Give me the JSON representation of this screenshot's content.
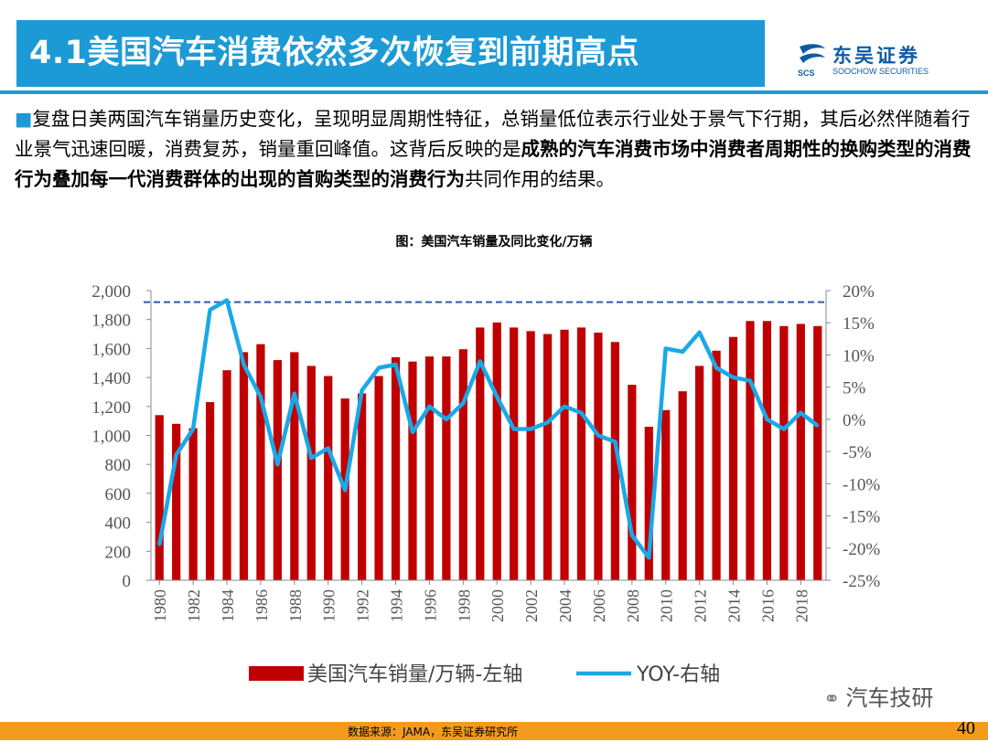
{
  "slide": {
    "title": "4.1美国汽车消费依然多次恢复到前期高点",
    "logo_cn": "东吴证券",
    "logo_en": "SOOCHOW SECURITIES",
    "logo_mark": "SCS",
    "intro": {
      "bullet": "■",
      "part1": "复盘日美两国汽车销量历史变化，呈现明显周期性特征，总销量低位表示行业处于景气下行期，其后必然伴随着行业景气迅速回暖，消费复苏，销量重回峰值。这背后反映的是",
      "bold": "成熟的汽车消费市场中消费者周期性的换购类型的消费行为叠加每一代消费群体的出现的首购类型的消费行为",
      "part2": "共同作用的结果。"
    },
    "chart_caption": "图：美国汽车销量及同比变化/万辆",
    "source": "数据来源：JAMA，东吴证券研究所",
    "page_number": "40",
    "watermark": "汽车技研",
    "colors": {
      "title_bar": "#1c9ad6",
      "bar": "#c00000",
      "yoy_line": "#1aa8e8",
      "ref_line": "#2e5ba8",
      "source_bar": "#f29b1d"
    }
  },
  "chart_data": {
    "type": "bar",
    "x": [
      1980,
      1981,
      1982,
      1983,
      1984,
      1985,
      1986,
      1987,
      1988,
      1989,
      1990,
      1991,
      1992,
      1993,
      1994,
      1995,
      1996,
      1997,
      1998,
      1999,
      2000,
      2001,
      2002,
      2003,
      2004,
      2005,
      2006,
      2007,
      2008,
      2009,
      2010,
      2011,
      2012,
      2013,
      2014,
      2015,
      2016,
      2017,
      2018,
      2019
    ],
    "x_tick_labels": [
      "1980",
      "1982",
      "1984",
      "1986",
      "1988",
      "1990",
      "1992",
      "1994",
      "1996",
      "1998",
      "2000",
      "2002",
      "2004",
      "2006",
      "2008",
      "2010",
      "2012",
      "2014",
      "2016",
      "2018"
    ],
    "series": [
      {
        "name": "美国汽车销量/万辆-左轴",
        "type": "bar",
        "axis": "left",
        "values": [
          1140,
          1080,
          1050,
          1230,
          1450,
          1575,
          1630,
          1520,
          1575,
          1480,
          1410,
          1255,
          1290,
          1410,
          1540,
          1510,
          1545,
          1545,
          1595,
          1745,
          1780,
          1745,
          1720,
          1700,
          1730,
          1745,
          1710,
          1645,
          1350,
          1060,
          1175,
          1305,
          1480,
          1585,
          1680,
          1790,
          1790,
          1755,
          1770,
          1755
        ]
      },
      {
        "name": "YOY-右轴",
        "type": "line",
        "axis": "right",
        "values": [
          -19.5,
          -5.5,
          -1.5,
          17,
          18.5,
          8.5,
          3.5,
          -7,
          4,
          -6,
          -4.5,
          -11,
          4.5,
          8,
          8.5,
          -2,
          2,
          0,
          2.5,
          9,
          3.5,
          -1.5,
          -1.5,
          -0.5,
          2,
          1,
          -2.5,
          -3.5,
          -18,
          -21.5,
          11,
          10.5,
          13.5,
          8,
          6.5,
          6,
          0,
          -1.5,
          1,
          -1
        ]
      }
    ],
    "y_left": {
      "ticks": [
        "0",
        "200",
        "400",
        "600",
        "800",
        "1,000",
        "1,200",
        "1,400",
        "1,600",
        "1,800",
        "2,000"
      ],
      "min": 0,
      "max": 2000
    },
    "y_right": {
      "ticks": [
        "-25%",
        "-20%",
        "-15%",
        "-10%",
        "-5%",
        "0%",
        "5%",
        "10%",
        "15%",
        "20%"
      ],
      "min": -25,
      "max": 20
    },
    "reference_line": {
      "axis": "left",
      "value": 1920,
      "style": "dashed"
    },
    "legend": {
      "placement": "bottom",
      "items": [
        {
          "label": "美国汽车销量/万辆-左轴",
          "color": "#c00000",
          "kind": "bar"
        },
        {
          "label": "YOY-右轴",
          "color": "#1aa8e8",
          "kind": "line"
        }
      ]
    },
    "grid": false
  }
}
